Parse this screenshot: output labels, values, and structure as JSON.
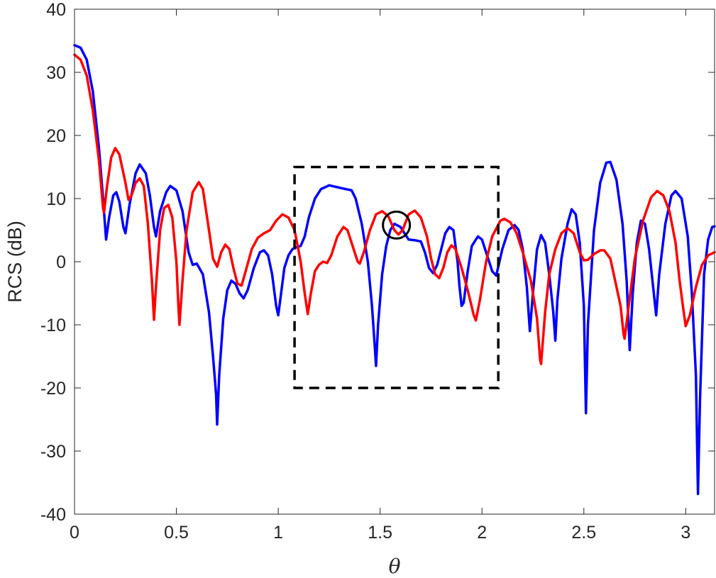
{
  "chart_data": {
    "type": "line",
    "title": "",
    "xlabel": "θ",
    "ylabel": "RCS (dB)",
    "xlim": [
      0,
      3.1416
    ],
    "ylim": [
      -40,
      40
    ],
    "xticks": [
      0,
      0.5,
      1,
      1.5,
      2,
      2.5,
      3
    ],
    "xtick_labels": [
      "0",
      "0.5",
      "1",
      "1.5",
      "2",
      "2.5",
      "3"
    ],
    "yticks": [
      -40,
      -30,
      -20,
      -10,
      0,
      10,
      20,
      30,
      40
    ],
    "ytick_labels": [
      "-40",
      "-30",
      "-20",
      "-10",
      "0",
      "10",
      "20",
      "30",
      "40"
    ],
    "grid": false,
    "box": true,
    "series": [
      {
        "color": "#0000ff",
        "points": [
          [
            0.0,
            34.3
          ],
          [
            0.03,
            33.9
          ],
          [
            0.06,
            32.0
          ],
          [
            0.09,
            27.0
          ],
          [
            0.12,
            18.0
          ],
          [
            0.14,
            10.0
          ],
          [
            0.155,
            3.5
          ],
          [
            0.17,
            7.0
          ],
          [
            0.19,
            10.5
          ],
          [
            0.205,
            11.0
          ],
          [
            0.22,
            9.5
          ],
          [
            0.24,
            5.5
          ],
          [
            0.25,
            4.5
          ],
          [
            0.27,
            9.0
          ],
          [
            0.3,
            14.0
          ],
          [
            0.32,
            15.4
          ],
          [
            0.35,
            14.0
          ],
          [
            0.37,
            10.5
          ],
          [
            0.39,
            5.5
          ],
          [
            0.4,
            4.0
          ],
          [
            0.42,
            8.0
          ],
          [
            0.45,
            11.0
          ],
          [
            0.47,
            12.0
          ],
          [
            0.5,
            11.3
          ],
          [
            0.53,
            8.0
          ],
          [
            0.56,
            1.5
          ],
          [
            0.58,
            -0.5
          ],
          [
            0.6,
            -0.3
          ],
          [
            0.63,
            -2.0
          ],
          [
            0.66,
            -8.0
          ],
          [
            0.68,
            -15.0
          ],
          [
            0.695,
            -21.0
          ],
          [
            0.7,
            -25.8
          ],
          [
            0.71,
            -18.0
          ],
          [
            0.73,
            -9.0
          ],
          [
            0.75,
            -4.5
          ],
          [
            0.77,
            -3.0
          ],
          [
            0.79,
            -3.5
          ],
          [
            0.81,
            -5.0
          ],
          [
            0.83,
            -5.8
          ],
          [
            0.85,
            -4.5
          ],
          [
            0.88,
            -1.0
          ],
          [
            0.91,
            1.5
          ],
          [
            0.93,
            1.8
          ],
          [
            0.95,
            1.0
          ],
          [
            0.97,
            -2.0
          ],
          [
            0.99,
            -7.0
          ],
          [
            1.0,
            -8.5
          ],
          [
            1.01,
            -6.0
          ],
          [
            1.03,
            -1.0
          ],
          [
            1.05,
            1.0
          ],
          [
            1.07,
            2.0
          ],
          [
            1.09,
            2.3
          ],
          [
            1.11,
            2.5
          ],
          [
            1.13,
            4.0
          ],
          [
            1.15,
            7.0
          ],
          [
            1.18,
            10.0
          ],
          [
            1.21,
            11.5
          ],
          [
            1.25,
            12.1
          ],
          [
            1.29,
            11.8
          ],
          [
            1.33,
            11.5
          ],
          [
            1.36,
            11.3
          ],
          [
            1.38,
            10.0
          ],
          [
            1.41,
            6.0
          ],
          [
            1.44,
            0.0
          ],
          [
            1.46,
            -7.0
          ],
          [
            1.475,
            -14.0
          ],
          [
            1.48,
            -16.5
          ],
          [
            1.49,
            -10.0
          ],
          [
            1.51,
            -2.0
          ],
          [
            1.53,
            2.5
          ],
          [
            1.55,
            5.0
          ],
          [
            1.57,
            6.0
          ],
          [
            1.6,
            5.5
          ],
          [
            1.62,
            4.5
          ],
          [
            1.64,
            3.5
          ],
          [
            1.67,
            3.4
          ],
          [
            1.7,
            3.2
          ],
          [
            1.72,
            1.5
          ],
          [
            1.74,
            -1.0
          ],
          [
            1.76,
            -1.8
          ],
          [
            1.78,
            -0.5
          ],
          [
            1.8,
            2.0
          ],
          [
            1.82,
            4.5
          ],
          [
            1.84,
            5.5
          ],
          [
            1.86,
            5.0
          ],
          [
            1.88,
            0.0
          ],
          [
            1.89,
            -4.0
          ],
          [
            1.9,
            -7.0
          ],
          [
            1.91,
            -6.5
          ],
          [
            1.93,
            -1.5
          ],
          [
            1.95,
            2.5
          ],
          [
            1.98,
            4.0
          ],
          [
            2.0,
            3.5
          ],
          [
            2.02,
            1.5
          ],
          [
            2.05,
            -1.5
          ],
          [
            2.07,
            -2.2
          ],
          [
            2.1,
            2.0
          ],
          [
            2.13,
            5.0
          ],
          [
            2.16,
            5.8
          ],
          [
            2.18,
            5.0
          ],
          [
            2.2,
            2.0
          ],
          [
            2.22,
            -4.0
          ],
          [
            2.235,
            -11.0
          ],
          [
            2.25,
            -5.0
          ],
          [
            2.27,
            2.0
          ],
          [
            2.29,
            4.2
          ],
          [
            2.31,
            3.0
          ],
          [
            2.33,
            -2.0
          ],
          [
            2.35,
            -8.0
          ],
          [
            2.36,
            -12.5
          ],
          [
            2.37,
            -6.0
          ],
          [
            2.39,
            0.5
          ],
          [
            2.42,
            6.0
          ],
          [
            2.44,
            8.3
          ],
          [
            2.46,
            7.5
          ],
          [
            2.48,
            3.0
          ],
          [
            2.5,
            -7.0
          ],
          [
            2.51,
            -24.0
          ],
          [
            2.52,
            -10.0
          ],
          [
            2.55,
            5.0
          ],
          [
            2.58,
            12.5
          ],
          [
            2.61,
            15.7
          ],
          [
            2.63,
            15.8
          ],
          [
            2.66,
            13.0
          ],
          [
            2.69,
            6.0
          ],
          [
            2.71,
            -3.0
          ],
          [
            2.725,
            -14.0
          ],
          [
            2.74,
            -5.0
          ],
          [
            2.76,
            3.0
          ],
          [
            2.78,
            6.5
          ],
          [
            2.8,
            6.0
          ],
          [
            2.82,
            2.0
          ],
          [
            2.84,
            -4.0
          ],
          [
            2.855,
            -8.5
          ],
          [
            2.87,
            -2.0
          ],
          [
            2.9,
            6.0
          ],
          [
            2.93,
            10.5
          ],
          [
            2.95,
            11.2
          ],
          [
            2.98,
            10.0
          ],
          [
            3.01,
            4.0
          ],
          [
            3.03,
            -5.0
          ],
          [
            3.05,
            -18.0
          ],
          [
            3.06,
            -36.8
          ],
          [
            3.07,
            -22.0
          ],
          [
            3.09,
            -2.0
          ],
          [
            3.11,
            3.5
          ],
          [
            3.13,
            5.5
          ],
          [
            3.1416,
            5.6
          ]
        ]
      },
      {
        "color": "#ff0000",
        "points": [
          [
            0.0,
            32.8
          ],
          [
            0.03,
            32.0
          ],
          [
            0.06,
            29.5
          ],
          [
            0.09,
            24.0
          ],
          [
            0.12,
            16.0
          ],
          [
            0.14,
            8.5
          ],
          [
            0.145,
            7.8
          ],
          [
            0.16,
            12.0
          ],
          [
            0.18,
            16.5
          ],
          [
            0.2,
            18.0
          ],
          [
            0.22,
            17.0
          ],
          [
            0.25,
            12.5
          ],
          [
            0.265,
            9.8
          ],
          [
            0.28,
            10.5
          ],
          [
            0.3,
            12.5
          ],
          [
            0.32,
            13.2
          ],
          [
            0.34,
            12.0
          ],
          [
            0.36,
            6.0
          ],
          [
            0.38,
            -3.0
          ],
          [
            0.39,
            -9.2
          ],
          [
            0.4,
            -4.0
          ],
          [
            0.42,
            5.0
          ],
          [
            0.44,
            8.5
          ],
          [
            0.46,
            9.0
          ],
          [
            0.48,
            7.0
          ],
          [
            0.5,
            0.0
          ],
          [
            0.51,
            -7.0
          ],
          [
            0.515,
            -10.0
          ],
          [
            0.53,
            -3.0
          ],
          [
            0.55,
            5.0
          ],
          [
            0.58,
            11.0
          ],
          [
            0.61,
            12.6
          ],
          [
            0.63,
            11.5
          ],
          [
            0.66,
            5.0
          ],
          [
            0.68,
            0.5
          ],
          [
            0.7,
            -0.8
          ],
          [
            0.72,
            1.5
          ],
          [
            0.74,
            2.7
          ],
          [
            0.76,
            2.0
          ],
          [
            0.78,
            -1.0
          ],
          [
            0.8,
            -3.5
          ],
          [
            0.82,
            -3.8
          ],
          [
            0.84,
            -1.5
          ],
          [
            0.87,
            2.0
          ],
          [
            0.9,
            3.8
          ],
          [
            0.93,
            4.5
          ],
          [
            0.96,
            5.0
          ],
          [
            0.99,
            6.5
          ],
          [
            1.02,
            7.5
          ],
          [
            1.05,
            7.0
          ],
          [
            1.08,
            5.0
          ],
          [
            1.11,
            0.0
          ],
          [
            1.13,
            -5.0
          ],
          [
            1.145,
            -8.3
          ],
          [
            1.16,
            -5.0
          ],
          [
            1.18,
            -1.5
          ],
          [
            1.2,
            -0.5
          ],
          [
            1.22,
            0.0
          ],
          [
            1.24,
            -0.2
          ],
          [
            1.26,
            1.0
          ],
          [
            1.29,
            4.0
          ],
          [
            1.32,
            5.5
          ],
          [
            1.34,
            5.0
          ],
          [
            1.37,
            2.0
          ],
          [
            1.39,
            0.0
          ],
          [
            1.4,
            -0.3
          ],
          [
            1.42,
            1.5
          ],
          [
            1.45,
            5.0
          ],
          [
            1.48,
            7.5
          ],
          [
            1.51,
            8.0
          ],
          [
            1.54,
            7.2
          ],
          [
            1.57,
            5.0
          ],
          [
            1.59,
            4.3
          ],
          [
            1.61,
            5.0
          ],
          [
            1.64,
            7.5
          ],
          [
            1.67,
            8.1
          ],
          [
            1.7,
            7.0
          ],
          [
            1.73,
            4.0
          ],
          [
            1.75,
            0.5
          ],
          [
            1.77,
            -2.0
          ],
          [
            1.79,
            -2.6
          ],
          [
            1.81,
            -1.0
          ],
          [
            1.83,
            1.5
          ],
          [
            1.85,
            2.6
          ],
          [
            1.87,
            2.0
          ],
          [
            1.9,
            -1.0
          ],
          [
            1.93,
            -4.5
          ],
          [
            1.96,
            -8.5
          ],
          [
            1.97,
            -9.3
          ],
          [
            1.99,
            -6.0
          ],
          [
            2.02,
            0.0
          ],
          [
            2.05,
            4.0
          ],
          [
            2.09,
            6.5
          ],
          [
            2.11,
            6.8
          ],
          [
            2.14,
            6.2
          ],
          [
            2.17,
            4.5
          ],
          [
            2.2,
            1.5
          ],
          [
            2.24,
            -3.0
          ],
          [
            2.27,
            -9.0
          ],
          [
            2.285,
            -15.5
          ],
          [
            2.29,
            -16.2
          ],
          [
            2.31,
            -8.0
          ],
          [
            2.33,
            -2.0
          ],
          [
            2.36,
            2.0
          ],
          [
            2.39,
            4.5
          ],
          [
            2.42,
            5.3
          ],
          [
            2.45,
            4.5
          ],
          [
            2.48,
            1.5
          ],
          [
            2.5,
            0.2
          ],
          [
            2.52,
            0.3
          ],
          [
            2.55,
            1.2
          ],
          [
            2.58,
            1.8
          ],
          [
            2.6,
            1.8
          ],
          [
            2.63,
            0.5
          ],
          [
            2.65,
            -2.5
          ],
          [
            2.68,
            -7.0
          ],
          [
            2.695,
            -11.5
          ],
          [
            2.7,
            -12.2
          ],
          [
            2.72,
            -7.0
          ],
          [
            2.75,
            0.5
          ],
          [
            2.79,
            6.5
          ],
          [
            2.83,
            10.2
          ],
          [
            2.86,
            11.2
          ],
          [
            2.89,
            10.5
          ],
          [
            2.92,
            8.0
          ],
          [
            2.95,
            3.0
          ],
          [
            2.97,
            -3.0
          ],
          [
            2.99,
            -8.0
          ],
          [
            3.0,
            -10.2
          ],
          [
            3.02,
            -8.5
          ],
          [
            3.05,
            -4.0
          ],
          [
            3.08,
            -0.5
          ],
          [
            3.11,
            1.0
          ],
          [
            3.1416,
            1.5
          ]
        ]
      }
    ],
    "annotations": [
      {
        "type": "dashed-rectangle",
        "x": [
          1.08,
          2.08
        ],
        "y": [
          -20,
          15
        ],
        "color": "#000000"
      },
      {
        "type": "circle",
        "x": 1.58,
        "y": 5.8,
        "color": "#000000"
      }
    ]
  }
}
